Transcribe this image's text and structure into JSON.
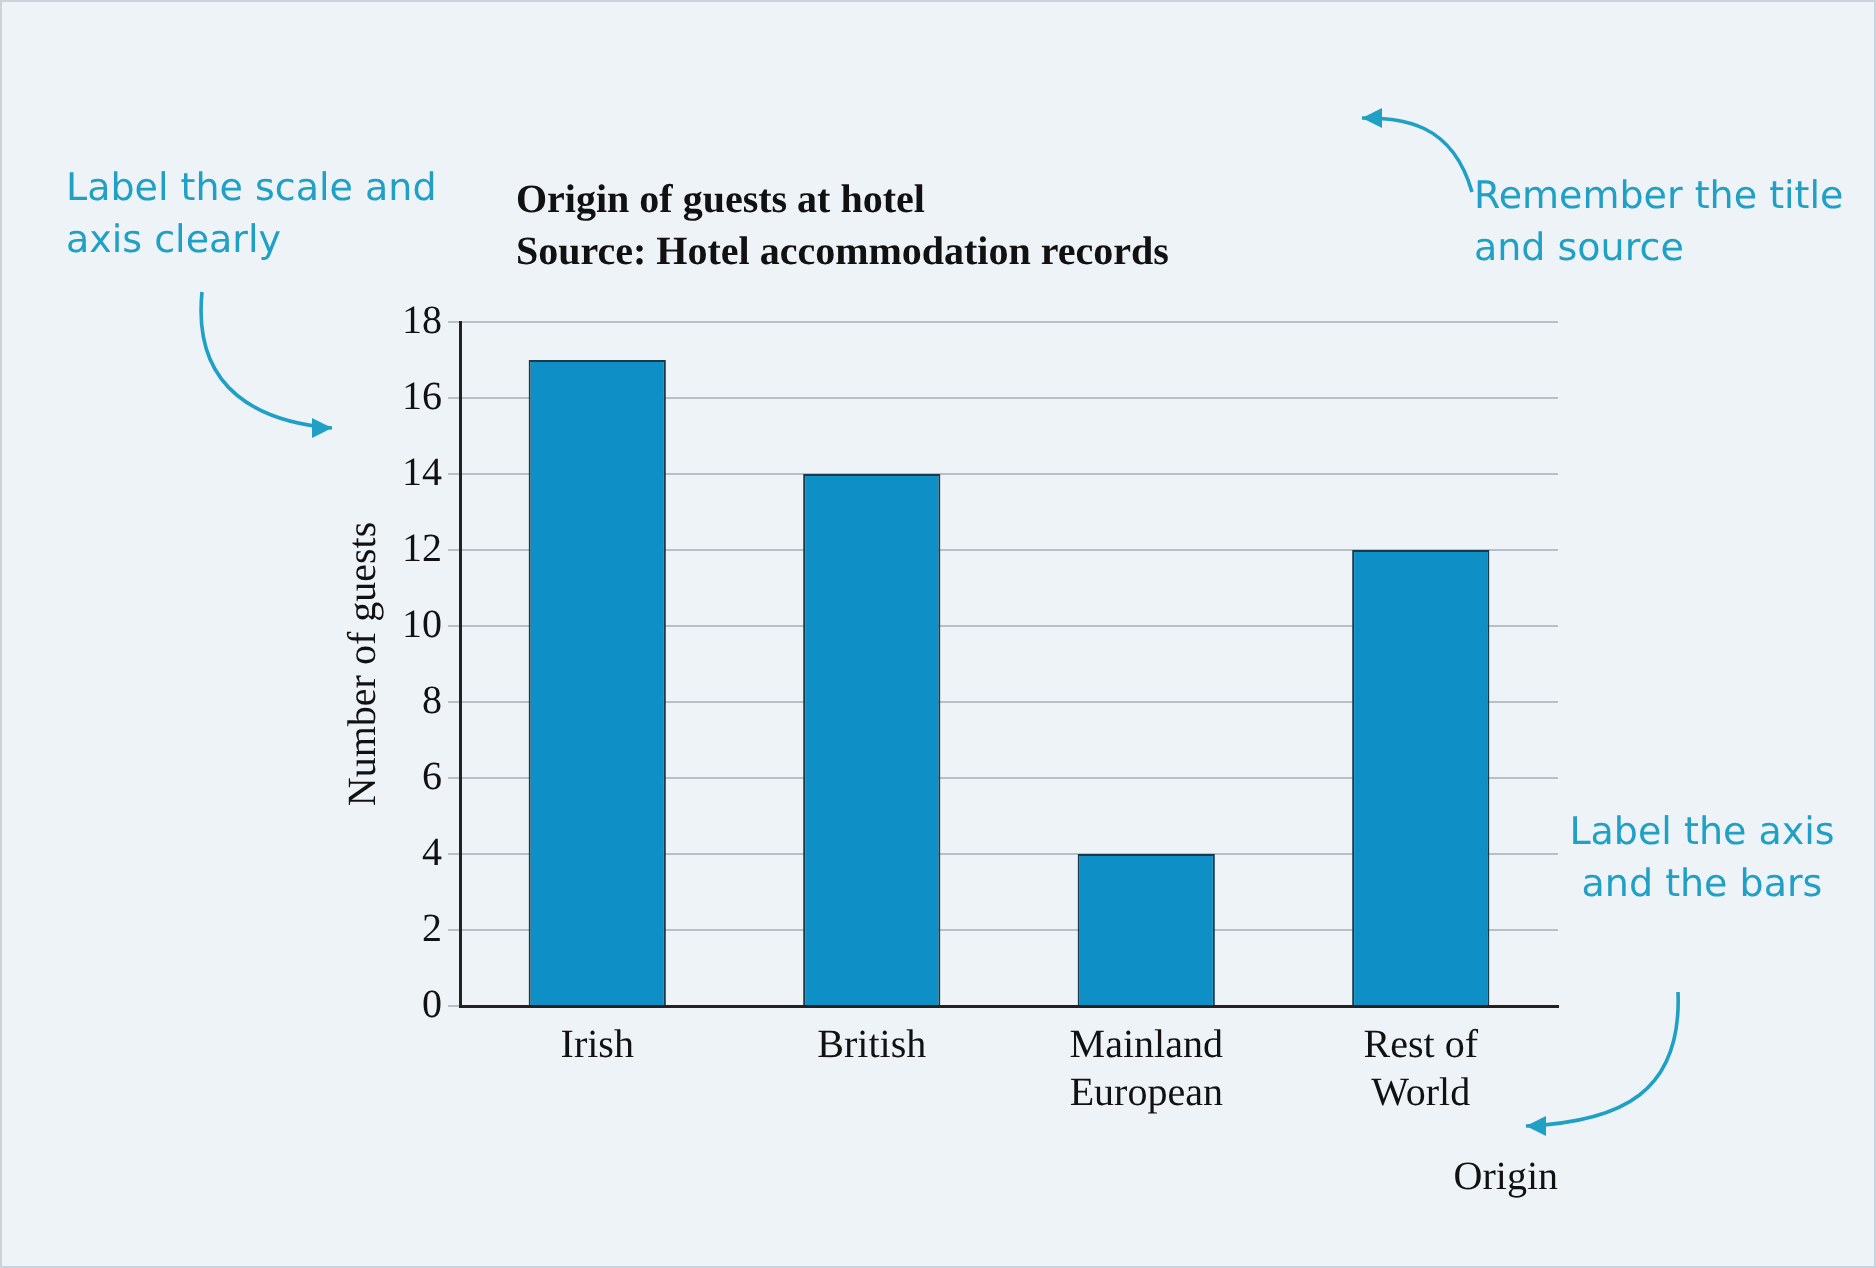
{
  "chart_data": {
    "type": "bar",
    "title": "Origin of guests at hotel",
    "subtitle": "Source: Hotel accommodation records",
    "xlabel": "Origin",
    "ylabel": "Number of guests",
    "categories": [
      "Irish",
      "British",
      "Mainland European",
      "Rest of World"
    ],
    "values": [
      17,
      14,
      4,
      12
    ],
    "color": "#0e8fc6",
    "ylim": [
      0,
      18
    ],
    "yticks": [
      0,
      2,
      4,
      6,
      8,
      10,
      12,
      14,
      16,
      18
    ],
    "grid": "y",
    "legend": false,
    "annotations": [
      "Label the scale and axis clearly",
      "Remember the title and source",
      "Label the axis and the bars"
    ]
  }
}
